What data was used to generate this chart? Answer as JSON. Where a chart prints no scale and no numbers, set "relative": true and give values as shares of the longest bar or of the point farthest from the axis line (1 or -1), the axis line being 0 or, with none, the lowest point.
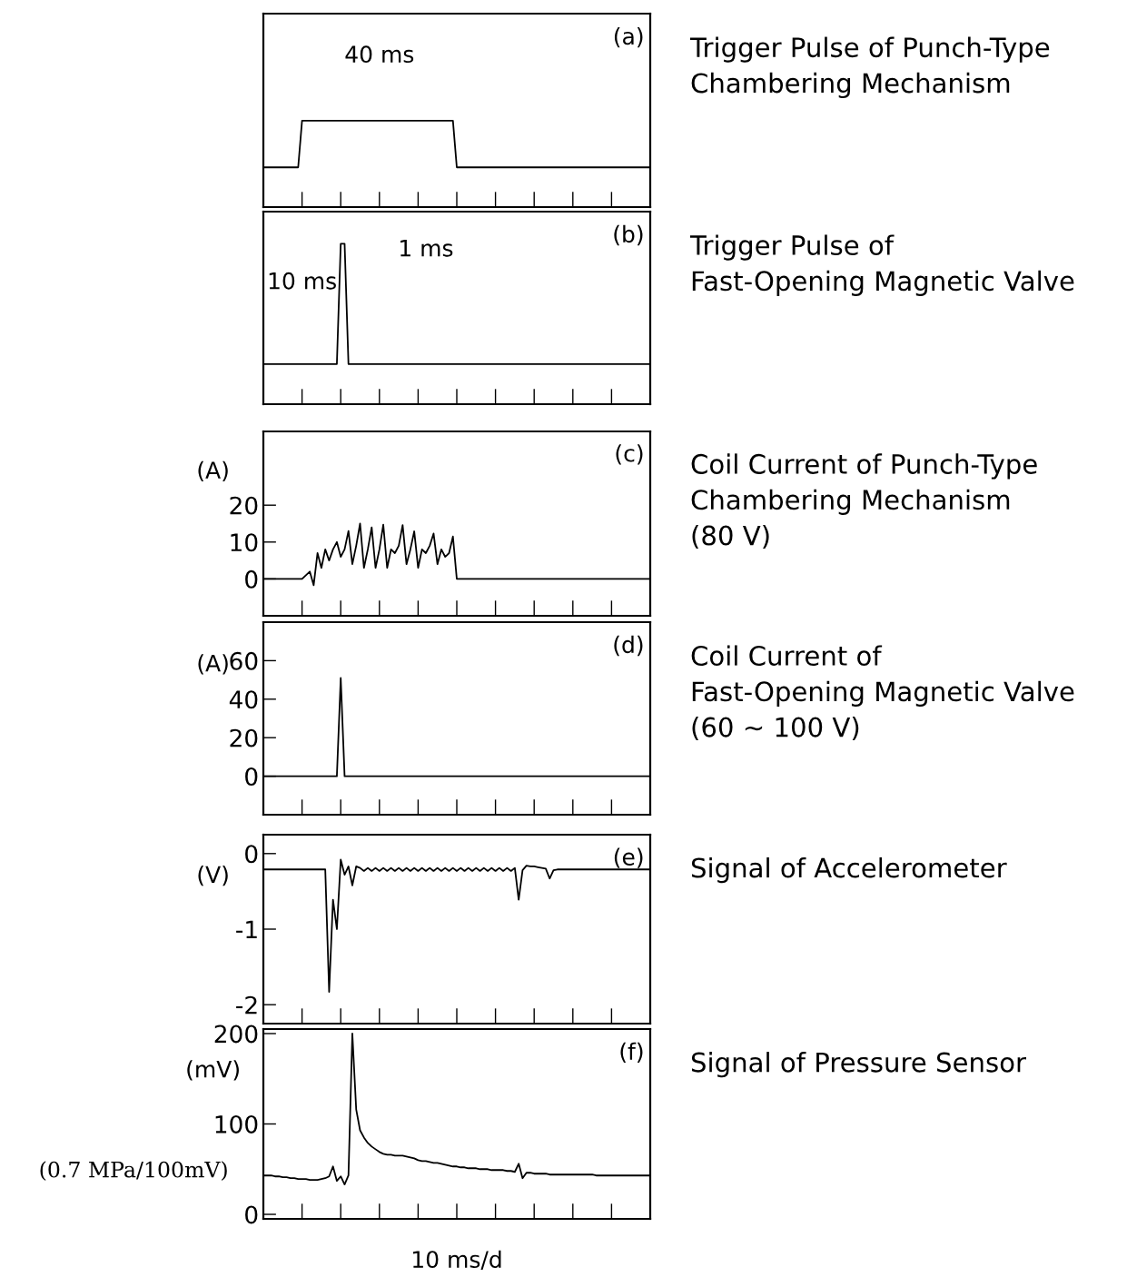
{
  "chart_data": [
    {
      "type": "line",
      "relative": true,
      "tick_labels": false,
      "categories": [
        null,
        null,
        null,
        null,
        null,
        null,
        null,
        null,
        null,
        null,
        null,
        null,
        null,
        null,
        null,
        null,
        null,
        null,
        null,
        null,
        null,
        null,
        null,
        null,
        null,
        null,
        null,
        null,
        null,
        null,
        null,
        null,
        null,
        null,
        null,
        null,
        null,
        null,
        null,
        null,
        null,
        null,
        null,
        null,
        null,
        null,
        null,
        null,
        null,
        null,
        null,
        null,
        null,
        null,
        null,
        null,
        null,
        null,
        null,
        null,
        null,
        null,
        null,
        null,
        null,
        null,
        null,
        null,
        null,
        null,
        null,
        null,
        null,
        null,
        null,
        null,
        null,
        null,
        null,
        null,
        null,
        null,
        null,
        null,
        null,
        null,
        null,
        null,
        null,
        null,
        null,
        null,
        null,
        null,
        null,
        null,
        null,
        null,
        null,
        null,
        null
      ],
      "annotations": [
        "(a)",
        "Trigger Pulse of Punch-Type\nChambering Mechanism",
        "40 ms"
      ],
      "series": [
        {
          "color": "#000000",
          "values": [
            0.46,
            0.46,
            0.46,
            0.46,
            0.46,
            0.46,
            0.46,
            0.46,
            0.46,
            0.46,
            1,
            1,
            1,
            1,
            1,
            1,
            1,
            1,
            1,
            1,
            1,
            1,
            1,
            1,
            1,
            1,
            1,
            1,
            1,
            1,
            1,
            1,
            1,
            1,
            1,
            1,
            1,
            1,
            1,
            1,
            1,
            1,
            1,
            1,
            1,
            1,
            1,
            1,
            1,
            1,
            0.46,
            0.46,
            0.46,
            0.46,
            0.46,
            0.46,
            0.46,
            0.46,
            0.46,
            0.46,
            0.46,
            0.46,
            0.46,
            0.46,
            0.46,
            0.46,
            0.46,
            0.46,
            0.46,
            0.46,
            0.46,
            0.46,
            0.46,
            0.46,
            0.46,
            0.46,
            0.46,
            0.46,
            0.46,
            0.46,
            0.46,
            0.46,
            0.46,
            0.46,
            0.46,
            0.46,
            0.46,
            0.46,
            0.46,
            0.46,
            0.46,
            0.46,
            0.46,
            0.46,
            0.46,
            0.46,
            0.46,
            0.46,
            0.46,
            0.46,
            0.46
          ]
        }
      ]
    },
    {
      "type": "line",
      "relative": true,
      "tick_labels": false,
      "categories": [
        null,
        null,
        null,
        null,
        null,
        null,
        null,
        null,
        null,
        null,
        null,
        null,
        null,
        null,
        null,
        null,
        null,
        null,
        null,
        null,
        null,
        null,
        null,
        null,
        null,
        null,
        null,
        null,
        null,
        null,
        null,
        null,
        null,
        null,
        null,
        null,
        null,
        null,
        null,
        null,
        null,
        null,
        null,
        null,
        null,
        null,
        null,
        null,
        null,
        null,
        null,
        null,
        null,
        null,
        null,
        null,
        null,
        null,
        null,
        null,
        null,
        null,
        null,
        null,
        null,
        null,
        null,
        null,
        null,
        null,
        null,
        null,
        null,
        null,
        null,
        null,
        null,
        null,
        null,
        null,
        null,
        null,
        null,
        null,
        null,
        null,
        null,
        null,
        null,
        null,
        null,
        null,
        null,
        null,
        null,
        null,
        null,
        null,
        null,
        null,
        null
      ],
      "annotations": [
        "(b)",
        "Trigger Pulse of\nFast-Opening Magnetic Valve",
        "10 ms",
        "1 ms"
      ],
      "series": [
        {
          "color": "#000000",
          "values": [
            0.25,
            0.25,
            0.25,
            0.25,
            0.25,
            0.25,
            0.25,
            0.25,
            0.25,
            0.25,
            0.25,
            0.25,
            0.25,
            0.25,
            0.25,
            0.25,
            0.25,
            0.25,
            0.25,
            0.25,
            1,
            1,
            0.25,
            0.25,
            0.25,
            0.25,
            0.25,
            0.25,
            0.25,
            0.25,
            0.25,
            0.25,
            0.25,
            0.25,
            0.25,
            0.25,
            0.25,
            0.25,
            0.25,
            0.25,
            0.25,
            0.25,
            0.25,
            0.25,
            0.25,
            0.25,
            0.25,
            0.25,
            0.25,
            0.25,
            0.25,
            0.25,
            0.25,
            0.25,
            0.25,
            0.25,
            0.25,
            0.25,
            0.25,
            0.25,
            0.25,
            0.25,
            0.25,
            0.25,
            0.25,
            0.25,
            0.25,
            0.25,
            0.25,
            0.25,
            0.25,
            0.25,
            0.25,
            0.25,
            0.25,
            0.25,
            0.25,
            0.25,
            0.25,
            0.25,
            0.25,
            0.25,
            0.25,
            0.25,
            0.25,
            0.25,
            0.25,
            0.25,
            0.25,
            0.25,
            0.25,
            0.25,
            0.25,
            0.25,
            0.25,
            0.25,
            0.25,
            0.25,
            0.25,
            0.25,
            0.25
          ]
        }
      ]
    },
    {
      "type": "line",
      "ylabel": "(A)",
      "tick_labels": "y",
      "ylim": [
        -10,
        40
      ],
      "yticks": [
        0,
        10,
        20
      ],
      "categories": [
        null,
        null,
        null,
        null,
        null,
        null,
        null,
        null,
        null,
        null,
        null,
        null,
        null,
        null,
        null,
        null,
        null,
        null,
        null,
        null,
        null,
        null,
        null,
        null,
        null,
        null,
        null,
        null,
        null,
        null,
        null,
        null,
        null,
        null,
        null,
        null,
        null,
        null,
        null,
        null,
        null,
        null,
        null,
        null,
        null,
        null,
        null,
        null,
        null,
        null,
        null,
        null,
        null,
        null,
        null,
        null,
        null,
        null,
        null,
        null,
        null,
        null,
        null,
        null,
        null,
        null,
        null,
        null,
        null,
        null,
        null,
        null,
        null,
        null,
        null,
        null,
        null,
        null,
        null,
        null,
        null,
        null,
        null,
        null,
        null,
        null,
        null,
        null,
        null,
        null,
        null,
        null,
        null,
        null,
        null,
        null,
        null,
        null,
        null,
        null,
        null
      ],
      "annotations": [
        "(c)",
        "Coil Current of Punch-Type\nChambering Mechanism\n(80 V)"
      ],
      "series": [
        {
          "color": "#000000",
          "values": [
            0,
            0,
            0,
            0,
            0,
            0,
            0,
            0,
            0,
            0,
            0,
            1,
            2,
            -1.7,
            7,
            3,
            8,
            5,
            8,
            10,
            6,
            8,
            13,
            4,
            9,
            15,
            3,
            8,
            14,
            3,
            8,
            14.7,
            3,
            8,
            7,
            9,
            14.6,
            4,
            8,
            12.9,
            3,
            8,
            7,
            9,
            12.3,
            4,
            8,
            6,
            7,
            11.5,
            0,
            0,
            0,
            0,
            0,
            0,
            0,
            0,
            0,
            0,
            0,
            0,
            0,
            0,
            0,
            0,
            0,
            0,
            0,
            0,
            0,
            0,
            0,
            0,
            0,
            0,
            0,
            0,
            0,
            0,
            0,
            0,
            0,
            0,
            0,
            0,
            0,
            0,
            0,
            0,
            0,
            0,
            0,
            0,
            0,
            0,
            0,
            0,
            0,
            0,
            0
          ]
        }
      ]
    },
    {
      "type": "line",
      "ylabel": "(A)",
      "tick_labels": "y",
      "ylim": [
        -20,
        80
      ],
      "yticks": [
        0,
        20,
        40,
        60
      ],
      "categories": [
        null,
        null,
        null,
        null,
        null,
        null,
        null,
        null,
        null,
        null,
        null,
        null,
        null,
        null,
        null,
        null,
        null,
        null,
        null,
        null,
        null,
        null,
        null,
        null,
        null,
        null,
        null,
        null,
        null,
        null,
        null,
        null,
        null,
        null,
        null,
        null,
        null,
        null,
        null,
        null,
        null,
        null,
        null,
        null,
        null,
        null,
        null,
        null,
        null,
        null,
        null,
        null,
        null,
        null,
        null,
        null,
        null,
        null,
        null,
        null,
        null,
        null,
        null,
        null,
        null,
        null,
        null,
        null,
        null,
        null,
        null,
        null,
        null,
        null,
        null,
        null,
        null,
        null,
        null,
        null,
        null,
        null,
        null,
        null,
        null,
        null,
        null,
        null,
        null,
        null,
        null,
        null,
        null,
        null,
        null,
        null,
        null,
        null,
        null,
        null,
        null
      ],
      "annotations": [
        "(d)",
        "Coil Current of\nFast-Opening Magnetic Valve\n(60 ~ 100 V)"
      ],
      "series": [
        {
          "color": "#000000",
          "values": [
            0,
            0,
            0,
            0,
            0,
            0,
            0,
            0,
            0,
            0,
            0,
            0,
            0,
            0,
            0,
            0,
            0,
            0,
            0,
            0,
            51,
            0,
            0,
            0,
            0,
            0,
            0,
            0,
            0,
            0,
            0,
            0,
            0,
            0,
            0,
            0,
            0,
            0,
            0,
            0,
            0,
            0,
            0,
            0,
            0,
            0,
            0,
            0,
            0,
            0,
            0,
            0,
            0,
            0,
            0,
            0,
            0,
            0,
            0,
            0,
            0,
            0,
            0,
            0,
            0,
            0,
            0,
            0,
            0,
            0,
            0,
            0,
            0,
            0,
            0,
            0,
            0,
            0,
            0,
            0,
            0,
            0,
            0,
            0,
            0,
            0,
            0,
            0,
            0,
            0,
            0,
            0,
            0,
            0,
            0,
            0,
            0,
            0,
            0,
            0,
            0
          ]
        }
      ]
    },
    {
      "type": "line",
      "ylabel": "(V)",
      "tick_labels": "y",
      "ylim": [
        -2.25,
        0.25
      ],
      "yticks": [
        -2,
        -1,
        0
      ],
      "categories": [
        null,
        null,
        null,
        null,
        null,
        null,
        null,
        null,
        null,
        null,
        null,
        null,
        null,
        null,
        null,
        null,
        null,
        null,
        null,
        null,
        null,
        null,
        null,
        null,
        null,
        null,
        null,
        null,
        null,
        null,
        null,
        null,
        null,
        null,
        null,
        null,
        null,
        null,
        null,
        null,
        null,
        null,
        null,
        null,
        null,
        null,
        null,
        null,
        null,
        null,
        null,
        null,
        null,
        null,
        null,
        null,
        null,
        null,
        null,
        null,
        null,
        null,
        null,
        null,
        null,
        null,
        null,
        null,
        null,
        null,
        null,
        null,
        null,
        null,
        null,
        null,
        null,
        null,
        null,
        null,
        null,
        null,
        null,
        null,
        null,
        null,
        null,
        null,
        null,
        null,
        null,
        null,
        null,
        null,
        null,
        null,
        null,
        null,
        null,
        null,
        null
      ],
      "annotations": [
        "(e)",
        "Signal of Accelerometer"
      ],
      "series": [
        {
          "color": "#000000",
          "values": [
            -0.21,
            -0.21,
            -0.21,
            -0.21,
            -0.21,
            -0.21,
            -0.21,
            -0.21,
            -0.21,
            -0.21,
            -0.21,
            -0.21,
            -0.21,
            -0.21,
            -0.21,
            -0.21,
            -0.21,
            -1.83,
            -0.61,
            -1.0,
            -0.08,
            -0.28,
            -0.17,
            -0.42,
            -0.17,
            -0.19,
            -0.23,
            -0.19,
            -0.23,
            -0.19,
            -0.23,
            -0.19,
            -0.23,
            -0.19,
            -0.23,
            -0.19,
            -0.23,
            -0.19,
            -0.23,
            -0.19,
            -0.23,
            -0.19,
            -0.23,
            -0.19,
            -0.23,
            -0.19,
            -0.23,
            -0.19,
            -0.23,
            -0.19,
            -0.23,
            -0.19,
            -0.23,
            -0.19,
            -0.23,
            -0.19,
            -0.23,
            -0.19,
            -0.23,
            -0.19,
            -0.23,
            -0.19,
            -0.23,
            -0.19,
            -0.23,
            -0.19,
            -0.61,
            -0.22,
            -0.16,
            -0.17,
            -0.17,
            -0.18,
            -0.19,
            -0.2,
            -0.33,
            -0.22,
            -0.21,
            -0.21,
            -0.21,
            -0.21,
            -0.21,
            -0.21,
            -0.21,
            -0.21,
            -0.21,
            -0.21,
            -0.21,
            -0.21,
            -0.21,
            -0.21,
            -0.21,
            -0.21,
            -0.21,
            -0.21,
            -0.21,
            -0.21,
            -0.21,
            -0.21,
            -0.21,
            -0.21,
            -0.21
          ]
        }
      ]
    },
    {
      "type": "line",
      "ylabel": "(mV)",
      "xlabel": "10 ms/d",
      "tick_labels": "y",
      "ylim": [
        -5,
        205
      ],
      "yticks": [
        0,
        100,
        200
      ],
      "categories": [
        null,
        null,
        null,
        null,
        null,
        null,
        null,
        null,
        null,
        null,
        null,
        null,
        null,
        null,
        null,
        null,
        null,
        null,
        null,
        null,
        null,
        null,
        null,
        null,
        null,
        null,
        null,
        null,
        null,
        null,
        null,
        null,
        null,
        null,
        null,
        null,
        null,
        null,
        null,
        null,
        null,
        null,
        null,
        null,
        null,
        null,
        null,
        null,
        null,
        null,
        null,
        null,
        null,
        null,
        null,
        null,
        null,
        null,
        null,
        null,
        null,
        null,
        null,
        null,
        null,
        null,
        null,
        null,
        null,
        null,
        null,
        null,
        null,
        null,
        null,
        null,
        null,
        null,
        null,
        null,
        null,
        null,
        null,
        null,
        null,
        null,
        null,
        null,
        null,
        null,
        null,
        null,
        null,
        null,
        null,
        null,
        null,
        null,
        null,
        null,
        null
      ],
      "annotations": [
        "(f)",
        "Signal of Pressure Sensor",
        "(0.7 MPa/100mV)"
      ],
      "series": [
        {
          "color": "#000000",
          "values": [
            43,
            43,
            43,
            42,
            42,
            41,
            41,
            40,
            40,
            39,
            39,
            39,
            38,
            38,
            38,
            39,
            40,
            42,
            53,
            37,
            42,
            33,
            43,
            200,
            116,
            93,
            85,
            79,
            75,
            72,
            69,
            67,
            66,
            66,
            65,
            65,
            65,
            64,
            63,
            62,
            60,
            59,
            59,
            58,
            57,
            57,
            56,
            55,
            54,
            53,
            53,
            52,
            52,
            51,
            51,
            51,
            50,
            50,
            50,
            49,
            49,
            49,
            49,
            48,
            48,
            47,
            56,
            40,
            46,
            46,
            45,
            45,
            45,
            45,
            44,
            44,
            44,
            44,
            44,
            44,
            44,
            44,
            44,
            44,
            44,
            44,
            43,
            43,
            43,
            43,
            43,
            43,
            43,
            43,
            43,
            43,
            43,
            43,
            43,
            43,
            43
          ]
        }
      ]
    }
  ]
}
